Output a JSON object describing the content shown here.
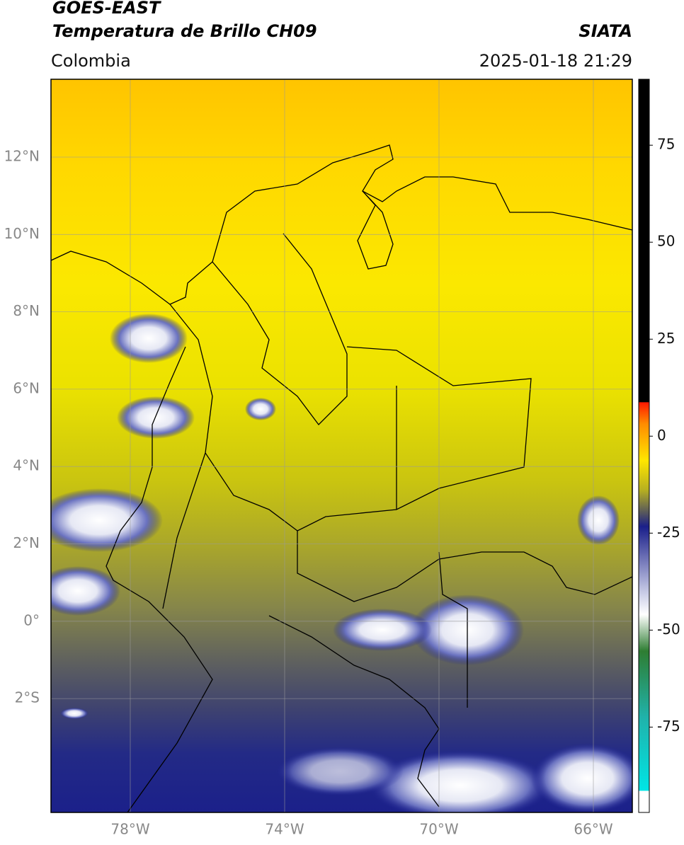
{
  "header": {
    "product": "GOES-EAST",
    "title": "Temperatura de Brillo CH09",
    "source": "SIATA",
    "region": "Colombia",
    "datetime": "2025-01-18 21:29"
  },
  "map": {
    "lon_ticks": [
      "78°W",
      "74°W",
      "70°W",
      "66°W"
    ],
    "lat_ticks": [
      "12°N",
      "10°N",
      "8°N",
      "6°N",
      "4°N",
      "2°N",
      "0°",
      "2°S"
    ]
  },
  "colorbar": {
    "lim": [
      -97,
      92
    ],
    "ticks": [
      75,
      50,
      25,
      0,
      -25,
      -50,
      -75
    ]
  }
}
